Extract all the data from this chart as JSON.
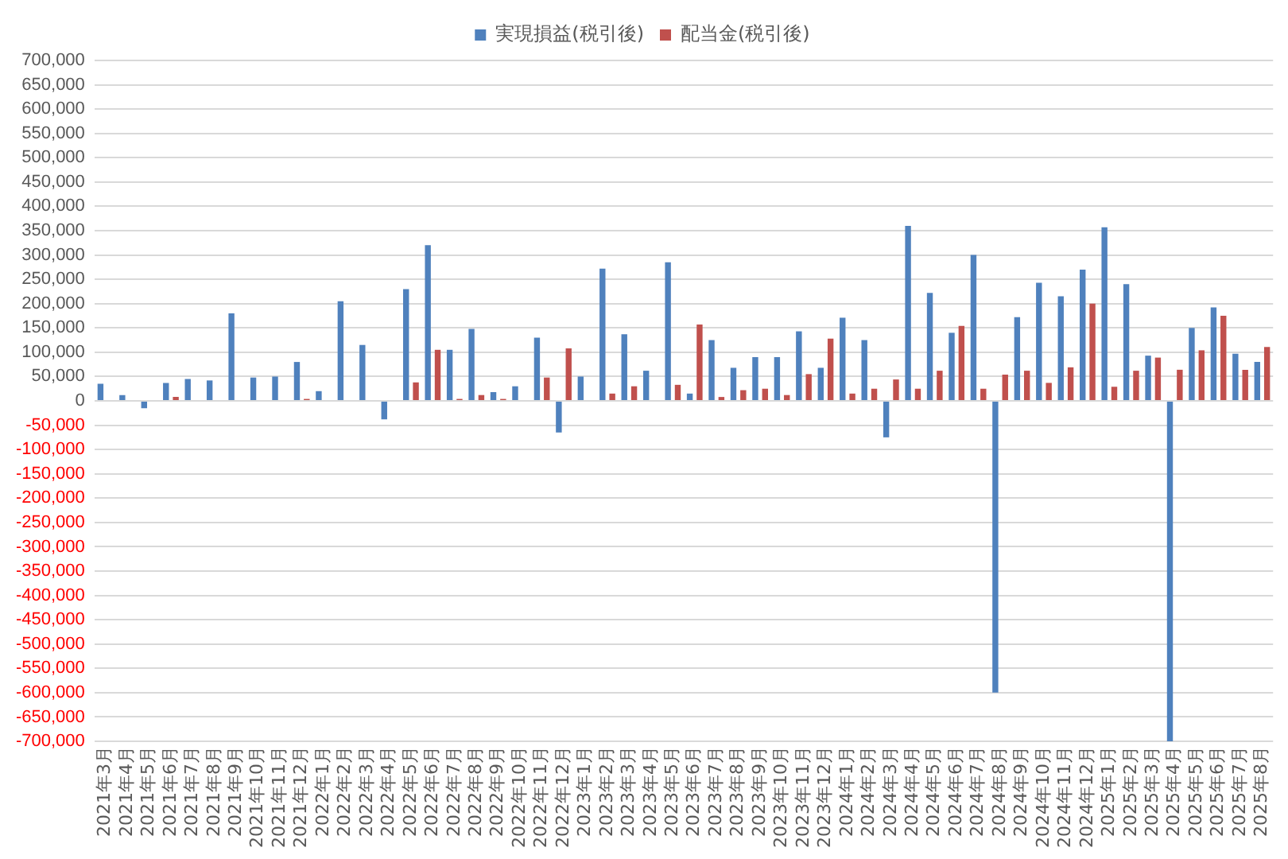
{
  "chart_data": {
    "type": "bar",
    "categories": [
      "2021年3月",
      "2021年4月",
      "2021年5月",
      "2021年6月",
      "2021年7月",
      "2021年8月",
      "2021年9月",
      "2021年10月",
      "2021年11月",
      "2021年12月",
      "2022年1月",
      "2022年2月",
      "2022年3月",
      "2022年4月",
      "2022年5月",
      "2022年6月",
      "2022年7月",
      "2022年8月",
      "2022年9月",
      "2022年10月",
      "2022年11月",
      "2022年12月",
      "2023年1月",
      "2023年2月",
      "2023年3月",
      "2023年4月",
      "2023年5月",
      "2023年6月",
      "2023年7月",
      "2023年8月",
      "2023年9月",
      "2023年10月",
      "2023年11月",
      "2023年12月",
      "2024年1月",
      "2024年2月",
      "2024年3月",
      "2024年4月",
      "2024年5月",
      "2024年6月",
      "2024年7月",
      "2024年8月",
      "2024年9月",
      "2024年10月",
      "2024年11月",
      "2024年12月",
      "2025年1月",
      "2025年2月",
      "2025年3月",
      "2025年4月",
      "2025年5月",
      "2025年6月",
      "2025年7月",
      "2025年8月"
    ],
    "series": [
      {
        "name": "実現損益(税引後)",
        "color": "#4f81bd",
        "values": [
          35000,
          12000,
          -15000,
          37000,
          45000,
          42000,
          180000,
          48000,
          50000,
          80000,
          20000,
          205000,
          115000,
          -38000,
          230000,
          320000,
          105000,
          148000,
          18000,
          30000,
          130000,
          -65000,
          50000,
          272000,
          137000,
          62000,
          285000,
          15000,
          125000,
          68000,
          90000,
          90000,
          143000,
          68000,
          171000,
          125000,
          -75000,
          360000,
          222000,
          140000,
          300000,
          -600000,
          172000,
          243000,
          215000,
          270000,
          357000,
          240000,
          93000,
          -700000,
          150000,
          192000,
          97000,
          80000
        ]
      },
      {
        "name": "配当金(税引後)",
        "color": "#c0504d",
        "values": [
          null,
          null,
          null,
          8000,
          null,
          null,
          null,
          null,
          null,
          4000,
          null,
          null,
          null,
          null,
          38000,
          105000,
          4000,
          12000,
          4000,
          null,
          48000,
          108000,
          null,
          15000,
          30000,
          null,
          33000,
          157000,
          8000,
          22000,
          25000,
          12000,
          55000,
          128000,
          15000,
          25000,
          44000,
          25000,
          62000,
          154000,
          25000,
          54000,
          62000,
          37000,
          69000,
          200000,
          29000,
          62000,
          89000,
          64000,
          104000,
          175000,
          64000,
          111000
        ]
      }
    ],
    "ylim": [
      -700000,
      700000
    ],
    "yticks": [
      {
        "value": -700000,
        "label": "-700,000"
      },
      {
        "value": -650000,
        "label": "-650,000"
      },
      {
        "value": -600000,
        "label": "-600,000"
      },
      {
        "value": -550000,
        "label": "-550,000"
      },
      {
        "value": -500000,
        "label": "-500,000"
      },
      {
        "value": -450000,
        "label": "-450,000"
      },
      {
        "value": -400000,
        "label": "-400,000"
      },
      {
        "value": -350000,
        "label": "-350,000"
      },
      {
        "value": -300000,
        "label": "-300,000"
      },
      {
        "value": -250000,
        "label": "-250,000"
      },
      {
        "value": -200000,
        "label": "-200,000"
      },
      {
        "value": -150000,
        "label": "-150,000"
      },
      {
        "value": -100000,
        "label": "-100,000"
      },
      {
        "value": -50000,
        "label": "-50,000"
      },
      0,
      {
        "value": 50000,
        "label": "50,000"
      },
      {
        "value": 100000,
        "label": "100,000"
      },
      {
        "value": 150000,
        "label": "150,000"
      },
      {
        "value": 200000,
        "label": "200,000"
      },
      {
        "value": 250000,
        "label": "250,000"
      },
      {
        "value": 300000,
        "label": "300,000"
      },
      {
        "value": 350000,
        "label": "350,000"
      },
      {
        "value": 400000,
        "label": "400,000"
      },
      {
        "value": 450000,
        "label": "450,000"
      },
      {
        "value": 500000,
        "label": "500,000"
      },
      {
        "value": 550000,
        "label": "550,000"
      },
      {
        "value": 600000,
        "label": "600,000"
      },
      {
        "value": 650000,
        "label": "650,000"
      },
      {
        "value": 700000,
        "label": "700,000"
      }
    ],
    "grid": "y",
    "legend": "top"
  }
}
